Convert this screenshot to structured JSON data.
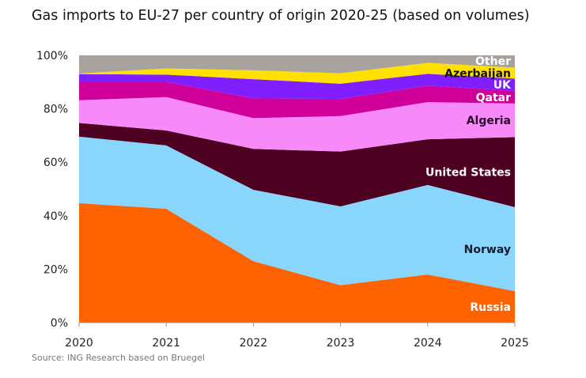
{
  "chart_data": {
    "type": "area",
    "stacked": true,
    "title": "Gas imports to EU-27 per country of origin 2020-25 (based on volumes)",
    "source": "Source: ING Research based on Bruegel",
    "x": [
      "2020",
      "2021",
      "2022",
      "2023",
      "2024",
      "2025"
    ],
    "ylim": [
      0,
      100
    ],
    "yticks": [
      "0%",
      "20%",
      "40%",
      "60%",
      "80%",
      "100%"
    ],
    "ytick_values": [
      0,
      20,
      40,
      60,
      80,
      100
    ],
    "grid": false,
    "legend": "inline labels at right edge",
    "series": [
      {
        "name": "Russia",
        "color": "#FF6200",
        "label_color": "#ffffff",
        "values": [
          44.7,
          42.6,
          23.0,
          14.0,
          18.0,
          11.8
        ]
      },
      {
        "name": "Norway",
        "color": "#89D6FD",
        "label_color": "#1a1a2e",
        "values": [
          24.9,
          23.7,
          26.7,
          29.5,
          33.5,
          31.4
        ]
      },
      {
        "name": "United States",
        "color": "#4D0020",
        "label_color": "#ffffff",
        "values": [
          5.1,
          5.6,
          15.3,
          20.5,
          17.1,
          26.2
        ]
      },
      {
        "name": "Algeria",
        "color": "#F78AF8",
        "label_color": "#2a0a2a",
        "values": [
          8.5,
          12.5,
          11.5,
          13.3,
          13.9,
          12.6
        ]
      },
      {
        "name": "Qatar",
        "color": "#D0009A",
        "label_color": "#ffffff",
        "values": [
          6.9,
          5.7,
          7.4,
          6.4,
          6.2,
          4.7
        ]
      },
      {
        "name": "UK",
        "color": "#7F1FFF",
        "label_color": "#ffffff",
        "values": [
          2.9,
          2.7,
          7.2,
          5.7,
          4.4,
          4.6
        ]
      },
      {
        "name": "Azerbaijan",
        "color": "#FFE000",
        "label_color": "#111111",
        "values": [
          0.2,
          2.3,
          3.3,
          3.9,
          4.1,
          4.1
        ]
      },
      {
        "name": "Other",
        "color": "#A8A29E",
        "label_color": "#ffffff",
        "values": [
          6.9,
          4.9,
          5.6,
          6.7,
          2.8,
          4.6
        ]
      }
    ]
  }
}
